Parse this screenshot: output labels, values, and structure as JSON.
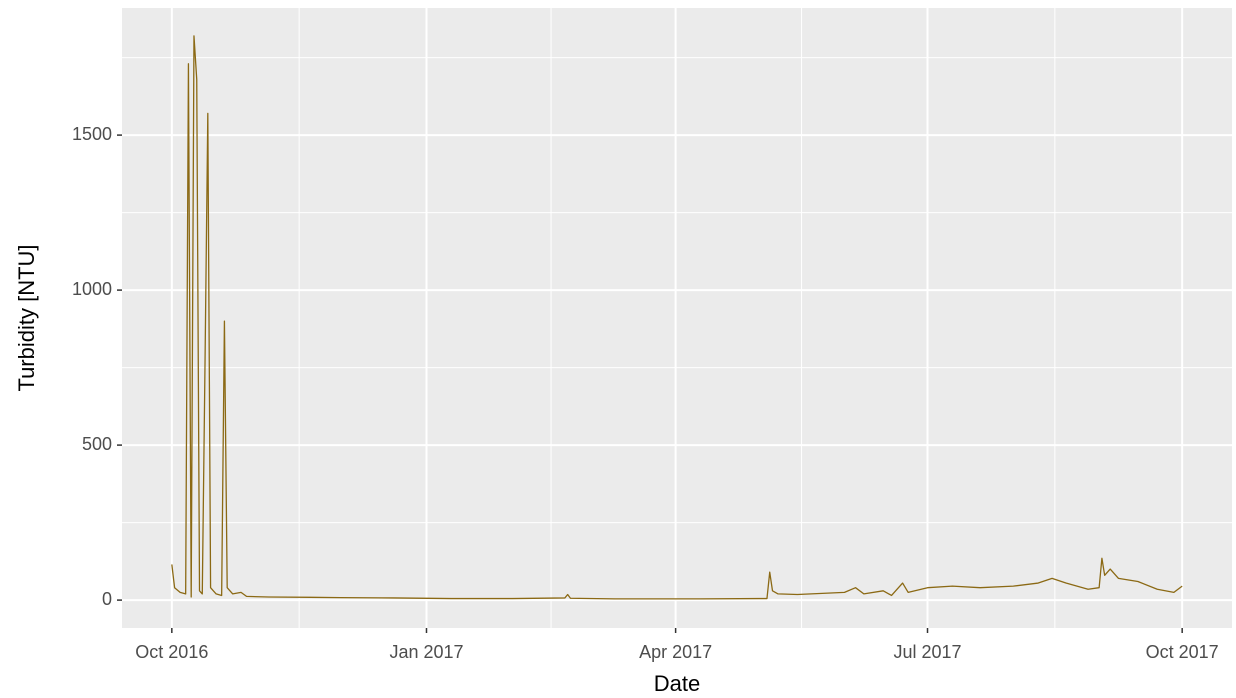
{
  "chart_data": {
    "type": "line",
    "x_label": "Date",
    "y_label": "Turbidity [NTU]",
    "x": [
      "2016-10-01",
      "2016-10-02",
      "2016-10-04",
      "2016-10-06",
      "2016-10-07",
      "2016-10-08",
      "2016-10-09",
      "2016-10-10",
      "2016-10-11",
      "2016-10-12",
      "2016-10-13",
      "2016-10-14",
      "2016-10-15",
      "2016-10-17",
      "2016-10-19",
      "2016-10-20",
      "2016-10-21",
      "2016-10-23",
      "2016-10-26",
      "2016-10-28",
      "2016-11-05",
      "2016-11-20",
      "2016-12-01",
      "2016-12-20",
      "2017-01-10",
      "2017-02-01",
      "2017-02-20",
      "2017-02-21",
      "2017-02-22",
      "2017-03-10",
      "2017-04-10",
      "2017-05-01",
      "2017-05-04",
      "2017-05-05",
      "2017-05-06",
      "2017-05-08",
      "2017-05-15",
      "2017-05-25",
      "2017-06-01",
      "2017-06-05",
      "2017-06-08",
      "2017-06-15",
      "2017-06-18",
      "2017-06-22",
      "2017-06-24",
      "2017-07-01",
      "2017-07-10",
      "2017-07-20",
      "2017-08-01",
      "2017-08-10",
      "2017-08-15",
      "2017-08-20",
      "2017-08-28",
      "2017-09-01",
      "2017-09-02",
      "2017-09-03",
      "2017-09-05",
      "2017-09-08",
      "2017-09-15",
      "2017-09-22",
      "2017-09-28",
      "2017-10-01"
    ],
    "series": [
      {
        "name": "Turbidity",
        "color": "#8b6914",
        "values": [
          115,
          40,
          25,
          20,
          1730,
          10,
          1820,
          1680,
          30,
          20,
          770,
          1570,
          40,
          20,
          15,
          900,
          40,
          20,
          25,
          12,
          10,
          9,
          8,
          7,
          5,
          5,
          7,
          18,
          6,
          4,
          4,
          5,
          5,
          90,
          30,
          20,
          18,
          22,
          25,
          40,
          20,
          30,
          15,
          55,
          25,
          40,
          45,
          40,
          45,
          55,
          70,
          55,
          35,
          40,
          135,
          80,
          100,
          70,
          60,
          35,
          25,
          45
        ]
      }
    ],
    "xlim": [
      "2016-09-13",
      "2017-10-19"
    ],
    "xticks": [
      {
        "value": "2016-10-01",
        "label": "Oct 2016"
      },
      {
        "value": "2017-01-01",
        "label": "Jan 2017"
      },
      {
        "value": "2017-04-01",
        "label": "Apr 2017"
      },
      {
        "value": "2017-07-01",
        "label": "Jul 2017"
      },
      {
        "value": "2017-10-01",
        "label": "Oct 2017"
      }
    ],
    "ylim": [
      -90,
      1910
    ],
    "yticks": [
      0,
      500,
      1000,
      1500
    ],
    "grid": true
  }
}
